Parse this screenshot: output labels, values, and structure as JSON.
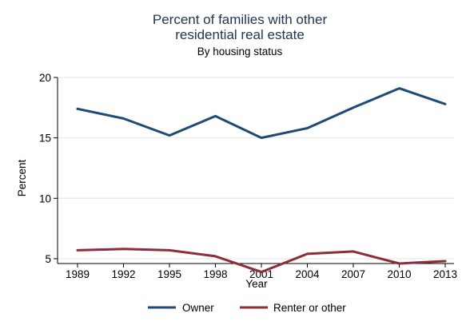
{
  "chart_data": {
    "type": "line",
    "title_lines": [
      "Percent of families with other",
      "residential real estate"
    ],
    "subtitle": "By housing status",
    "xlabel": "Year",
    "ylabel": "Percent",
    "categories": [
      "1989",
      "1992",
      "1995",
      "1998",
      "2001",
      "2004",
      "2007",
      "2010",
      "2013"
    ],
    "yticks": [
      "5",
      "10",
      "15",
      "20"
    ],
    "ylim": [
      4.6,
      20.0
    ],
    "grid": true,
    "legend_position": "bottom",
    "series": [
      {
        "name": "Owner",
        "color": "#1f4a73",
        "values": [
          17.4,
          16.6,
          15.2,
          16.8,
          15.0,
          15.8,
          17.5,
          19.1,
          17.8
        ]
      },
      {
        "name": "Renter or other",
        "color": "#8c2d3a",
        "values": [
          5.7,
          5.8,
          5.7,
          5.2,
          3.9,
          5.4,
          5.6,
          4.6,
          4.8
        ]
      }
    ]
  }
}
